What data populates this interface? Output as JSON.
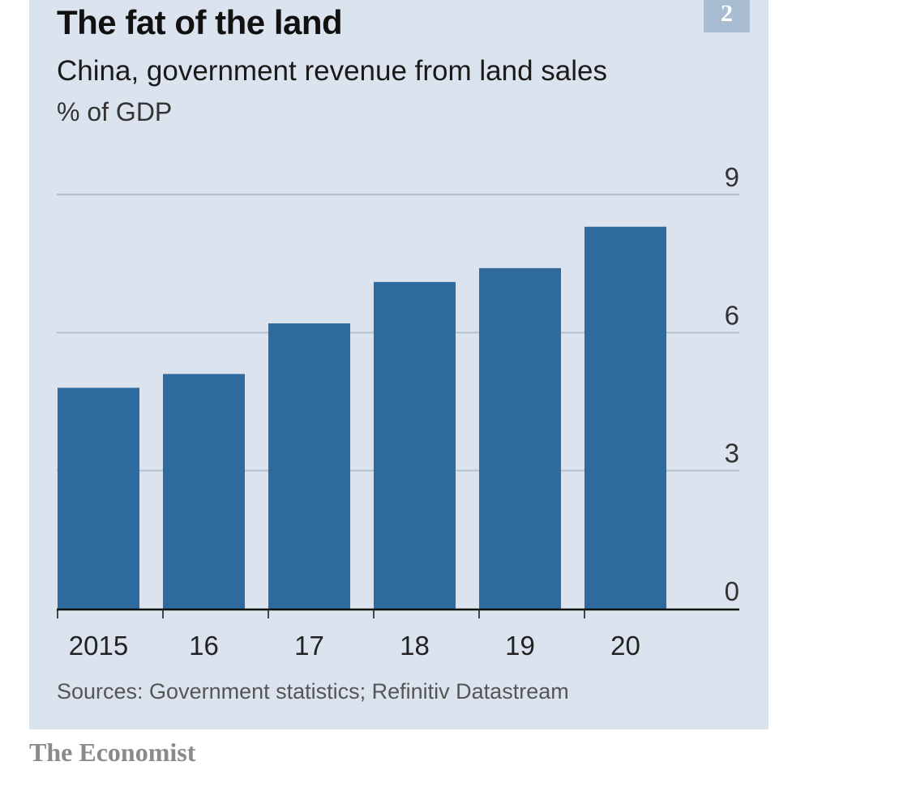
{
  "header": {
    "badge": "2",
    "title": "The fat of the land",
    "subtitle": "China, government revenue from land sales",
    "unit": "% of GDP"
  },
  "footer": {
    "source": "Sources: Government statistics; Refinitiv Datastream",
    "brand": "The Economist"
  },
  "colors": {
    "bar": "#2e6a9e",
    "gridline": "#b3c1cf",
    "axis": "#111111",
    "panel": "#dbe4ee"
  },
  "chart_data": {
    "type": "bar",
    "title": "The fat of the land",
    "subtitle": "China, government revenue from land sales",
    "ylabel": "% of GDP",
    "xlabel": "",
    "categories": [
      "2015",
      "16",
      "17",
      "18",
      "19",
      "20"
    ],
    "values": [
      4.8,
      5.1,
      6.2,
      7.1,
      7.4,
      8.3
    ],
    "ylim": [
      0,
      9
    ],
    "yticks": [
      0,
      3,
      6,
      9
    ],
    "grid": true,
    "y_axis_side": "right"
  }
}
